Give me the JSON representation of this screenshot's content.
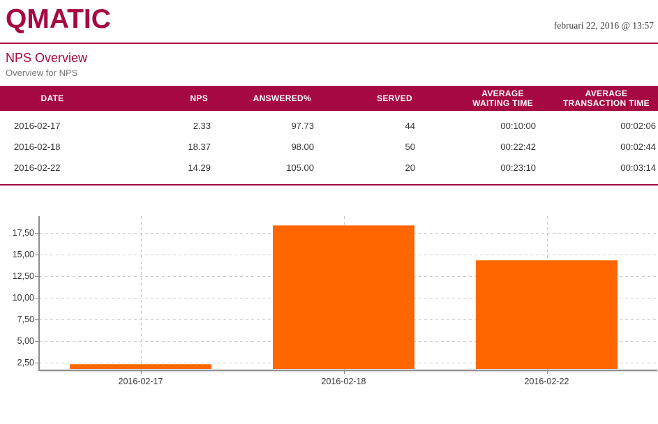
{
  "header": {
    "logo_text": "QMATIC",
    "datetime": "februari 22, 2016 @ 13:57"
  },
  "page": {
    "title": "NPS Overview",
    "subtitle": "Overview for NPS"
  },
  "table": {
    "columns": [
      {
        "label": "DATE"
      },
      {
        "label": "NPS"
      },
      {
        "label": "ANSWERED%"
      },
      {
        "label": "SERVED"
      },
      {
        "label": "AVERAGE",
        "label2": "WAITING TIME"
      },
      {
        "label": "AVERAGE",
        "label2": "TRANSACTION TIME"
      }
    ],
    "rows": [
      [
        "2016-02-17",
        "2.33",
        "97.73",
        "44",
        "00:10:00",
        "00:02:06"
      ],
      [
        "2016-02-18",
        "18.37",
        "98.00",
        "50",
        "00:22:42",
        "00:02:44"
      ],
      [
        "2016-02-22",
        "14.29",
        "105.00",
        "20",
        "00:23:10",
        "00:03:14"
      ]
    ]
  },
  "chart_data": {
    "type": "bar",
    "title": "",
    "categories": [
      "2016-02-17",
      "2016-02-18",
      "2016-02-22"
    ],
    "series": [
      {
        "name": "NPS",
        "values": [
          2.33,
          18.37,
          14.29
        ]
      }
    ],
    "ylim": [
      1.7,
      19.4
    ],
    "yticks": [
      2.5,
      5,
      7.5,
      10,
      12.5,
      15,
      17.5
    ],
    "ytick_labels": [
      "2,50",
      "5,00",
      "7,50",
      "10,00",
      "12,50",
      "15,00",
      "17,50"
    ],
    "grid": true,
    "legend_position": "none",
    "bar_color": "#ff6600"
  },
  "colors": {
    "accent": "#a60843",
    "bar": "#ff6600",
    "gridline": "#cbcbcb",
    "axis": "#8c8c8c"
  }
}
